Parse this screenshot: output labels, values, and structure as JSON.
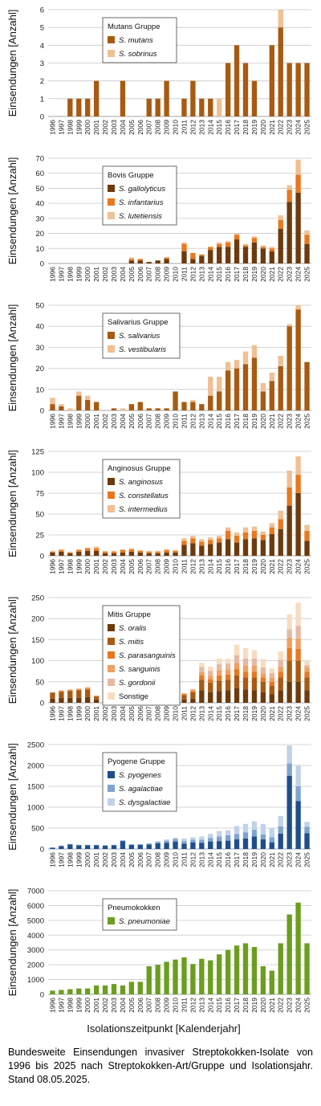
{
  "years": [
    "1996",
    "1997",
    "1998",
    "1999",
    "2000",
    "2001",
    "2002",
    "2003",
    "2004",
    "2005",
    "2006",
    "2007",
    "2008",
    "2009",
    "2010",
    "2011",
    "2012",
    "2013",
    "2014",
    "2015",
    "2016",
    "2017",
    "2018",
    "2019",
    "2020",
    "2021",
    "2022",
    "2023",
    "2024",
    "2025"
  ],
  "ylabel": "Einsendungen [Anzahl]",
  "xlabel": "Isolationszeitpunkt [Kalenderjahr]",
  "caption": "Bundesweite Einsendungen invasiver Streptokokken-Isolate von 1996 bis 2025 nach Streptokokken-Art/Gruppe und Isolationsjahr. Stand 08.05.2025.",
  "chart_data": [
    {
      "type": "bar",
      "stacked": true,
      "legend_title": "Mutans Gruppe",
      "ylim": [
        0,
        6
      ],
      "yticks": [
        0,
        1,
        2,
        3,
        4,
        5,
        6
      ],
      "legend_position": "top-left",
      "series": [
        {
          "name": "S. mutans",
          "color": "#a85a12",
          "values": [
            0,
            0,
            1,
            1,
            1,
            2,
            0,
            0,
            2,
            0,
            0,
            1,
            1,
            2,
            0,
            1,
            2,
            1,
            1,
            0,
            3,
            4,
            3,
            2,
            0,
            4,
            5,
            3,
            3,
            3
          ]
        },
        {
          "name": "S. sobrinus",
          "color": "#f0bf93",
          "values": [
            0,
            0,
            0,
            0,
            0,
            0,
            0,
            0,
            0,
            0,
            0,
            0,
            0,
            0,
            0,
            0,
            0,
            0,
            0,
            1,
            0,
            0,
            0,
            0,
            0,
            0,
            1,
            0,
            0,
            0
          ]
        }
      ]
    },
    {
      "type": "bar",
      "stacked": true,
      "legend_title": "Bovis Gruppe",
      "ylim": [
        0,
        70
      ],
      "yticks": [
        0,
        10,
        20,
        30,
        40,
        50,
        60,
        70
      ],
      "legend_position": "top-left",
      "series": [
        {
          "name": "S. gallolyticus",
          "color": "#6e3a0c",
          "values": [
            0,
            0,
            0,
            0,
            0,
            0,
            0,
            0,
            0,
            2,
            2,
            1,
            2,
            3,
            0,
            8,
            3,
            5,
            9,
            11,
            11,
            16,
            11,
            14,
            10,
            8,
            23,
            41,
            47,
            13
          ]
        },
        {
          "name": "S. infantarius",
          "color": "#e8781f",
          "values": [
            0,
            0,
            0,
            0,
            0,
            0,
            0,
            0,
            0,
            1,
            1,
            0,
            0,
            1,
            0,
            5,
            4,
            1,
            2,
            2,
            3,
            3,
            1,
            3,
            1,
            2,
            6,
            8,
            12,
            6
          ]
        },
        {
          "name": "S. lutetiensis",
          "color": "#f0bf93",
          "values": [
            0,
            0,
            0,
            0,
            0,
            0,
            0,
            0,
            0,
            1,
            0,
            0,
            0,
            0,
            0,
            1,
            0,
            0,
            0,
            1,
            1,
            1,
            1,
            1,
            1,
            1,
            3,
            3,
            10,
            3
          ]
        }
      ]
    },
    {
      "type": "bar",
      "stacked": true,
      "legend_title": "Salivarius Gruppe",
      "ylim": [
        0,
        50
      ],
      "yticks": [
        0,
        10,
        20,
        30,
        40,
        50
      ],
      "legend_position": "top-left",
      "series": [
        {
          "name": "S. salivarius",
          "color": "#a85a12",
          "values": [
            3,
            2,
            0,
            7,
            5,
            4,
            0,
            1,
            0,
            3,
            4,
            1,
            1,
            1,
            9,
            4,
            4,
            3,
            7,
            9,
            19,
            20,
            22,
            25,
            9,
            14,
            21,
            40,
            48,
            23
          ]
        },
        {
          "name": "S. vestibularis",
          "color": "#f0bf93",
          "values": [
            3,
            1,
            1,
            2,
            2,
            0,
            0,
            0,
            1,
            0,
            0,
            0,
            0,
            0,
            0,
            0,
            1,
            0,
            9,
            7,
            4,
            4,
            6,
            6,
            4,
            4,
            5,
            1,
            2,
            0
          ]
        }
      ]
    },
    {
      "type": "bar",
      "stacked": true,
      "legend_title": "Anginosus Gruppe",
      "ylim": [
        0,
        125
      ],
      "yticks": [
        0,
        25,
        50,
        75,
        100,
        125
      ],
      "legend_position": "top-left",
      "series": [
        {
          "name": "S. anginosus",
          "color": "#6e3a0c",
          "values": [
            4,
            5,
            3,
            5,
            6,
            6,
            3,
            3,
            4,
            5,
            4,
            3,
            3,
            4,
            4,
            13,
            15,
            12,
            14,
            16,
            20,
            16,
            20,
            21,
            19,
            26,
            32,
            60,
            75,
            18
          ]
        },
        {
          "name": "S. constellatus",
          "color": "#e8781f",
          "values": [
            1,
            2,
            1,
            2,
            3,
            3,
            2,
            2,
            3,
            3,
            2,
            2,
            2,
            3,
            2,
            5,
            6,
            5,
            5,
            5,
            10,
            8,
            8,
            9,
            6,
            8,
            12,
            22,
            22,
            12
          ]
        },
        {
          "name": "S. intermedius",
          "color": "#f0bf93",
          "values": [
            1,
            1,
            1,
            1,
            1,
            2,
            1,
            1,
            1,
            1,
            1,
            1,
            1,
            1,
            1,
            3,
            3,
            3,
            3,
            3,
            4,
            4,
            6,
            5,
            4,
            5,
            10,
            20,
            22,
            7
          ]
        }
      ]
    },
    {
      "type": "bar",
      "stacked": true,
      "legend_title": "Mitis Gruppe",
      "ylim": [
        0,
        250
      ],
      "yticks": [
        0,
        50,
        100,
        150,
        200,
        250
      ],
      "legend_position": "top-left",
      "series": [
        {
          "name": "S. oralis",
          "color": "#6e3a0c",
          "values": [
            10,
            12,
            12,
            12,
            14,
            8,
            3,
            4,
            3,
            5,
            5,
            6,
            7,
            8,
            6,
            8,
            10,
            30,
            25,
            28,
            30,
            35,
            32,
            30,
            25,
            20,
            30,
            50,
            50,
            30
          ]
        },
        {
          "name": "S. mitis",
          "color": "#a85a12",
          "values": [
            14,
            14,
            16,
            18,
            18,
            7,
            3,
            3,
            3,
            7,
            7,
            8,
            10,
            11,
            8,
            10,
            15,
            25,
            23,
            25,
            25,
            30,
            28,
            30,
            25,
            20,
            30,
            50,
            50,
            30
          ]
        },
        {
          "name": "S. parasanguinis",
          "color": "#e8781f",
          "values": [
            1,
            2,
            2,
            2,
            2,
            1,
            1,
            1,
            1,
            1,
            1,
            1,
            2,
            2,
            1,
            2,
            3,
            10,
            8,
            12,
            12,
            15,
            14,
            14,
            10,
            10,
            14,
            30,
            28,
            14
          ]
        },
        {
          "name": "S. sanguinis",
          "color": "#f0a060",
          "values": [
            0,
            1,
            1,
            1,
            2,
            1,
            0,
            0,
            0,
            1,
            1,
            1,
            1,
            2,
            1,
            2,
            3,
            8,
            8,
            12,
            12,
            15,
            14,
            14,
            10,
            10,
            12,
            25,
            25,
            10
          ]
        },
        {
          "name": "S. gordonii",
          "color": "#e6b9a0",
          "values": [
            0,
            1,
            1,
            1,
            1,
            0,
            0,
            0,
            0,
            1,
            1,
            1,
            1,
            2,
            1,
            1,
            2,
            12,
            12,
            15,
            14,
            18,
            17,
            17,
            14,
            11,
            16,
            20,
            30,
            6
          ]
        },
        {
          "name": "Sonstige",
          "color": "#f8dcc0",
          "values": [
            0,
            0,
            0,
            1,
            1,
            0,
            0,
            0,
            0,
            0,
            0,
            0,
            0,
            0,
            0,
            0,
            0,
            10,
            10,
            13,
            12,
            25,
            25,
            20,
            20,
            11,
            20,
            35,
            55,
            10
          ]
        }
      ]
    },
    {
      "type": "bar",
      "stacked": true,
      "legend_title": "Pyogene Gruppe",
      "ylim": [
        0,
        2500
      ],
      "yticks": [
        0,
        500,
        1000,
        1500,
        2000,
        2500
      ],
      "legend_position": "top-left",
      "series": [
        {
          "name": "S. pyogenes",
          "color": "#1f4e8c",
          "values": [
            30,
            70,
            110,
            90,
            90,
            90,
            80,
            90,
            190,
            100,
            100,
            110,
            140,
            150,
            180,
            130,
            160,
            150,
            180,
            190,
            200,
            230,
            250,
            300,
            230,
            160,
            370,
            1750,
            1150,
            380
          ]
        },
        {
          "name": "S. agalactiae",
          "color": "#7fa4cf",
          "values": [
            5,
            10,
            10,
            10,
            10,
            10,
            10,
            10,
            15,
            10,
            15,
            20,
            30,
            50,
            60,
            60,
            60,
            70,
            80,
            110,
            130,
            130,
            150,
            160,
            120,
            120,
            170,
            300,
            350,
            150
          ]
        },
        {
          "name": "S. dysgalactiae",
          "color": "#bfd2e8",
          "values": [
            0,
            0,
            0,
            0,
            0,
            0,
            0,
            0,
            0,
            0,
            0,
            10,
            20,
            30,
            30,
            60,
            60,
            80,
            100,
            130,
            120,
            190,
            200,
            200,
            250,
            220,
            250,
            430,
            500,
            120
          ]
        }
      ]
    },
    {
      "type": "bar",
      "stacked": false,
      "legend_title": "Pneumokokken",
      "ylim": [
        0,
        7000
      ],
      "yticks": [
        0,
        1000,
        2000,
        3000,
        4000,
        5000,
        6000,
        7000
      ],
      "legend_position": "top-left",
      "series": [
        {
          "name": "S. pneumoniae",
          "color": "#6b9e1f",
          "values": [
            250,
            300,
            350,
            400,
            400,
            600,
            600,
            700,
            600,
            850,
            850,
            1900,
            2000,
            2200,
            2350,
            2500,
            2050,
            2400,
            2300,
            2700,
            3000,
            3300,
            3450,
            3200,
            1900,
            1600,
            3450,
            5400,
            6200,
            3450
          ]
        }
      ]
    }
  ]
}
